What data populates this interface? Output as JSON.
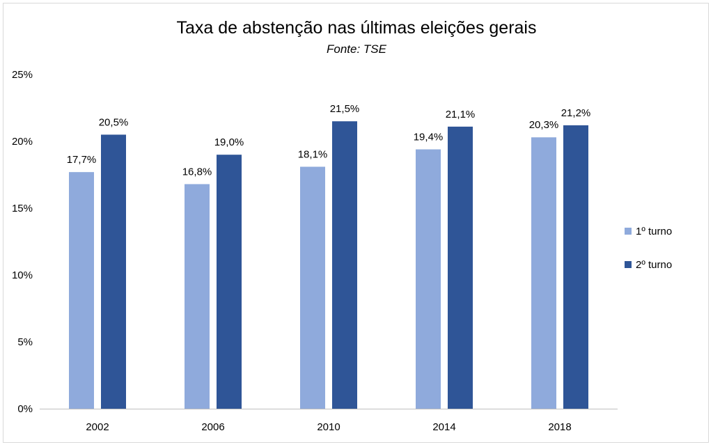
{
  "chart_data": {
    "type": "bar",
    "title": "Taxa de abstenção nas últimas eleições gerais",
    "subtitle": "Fonte: TSE",
    "categories": [
      "2002",
      "2006",
      "2010",
      "2014",
      "2018"
    ],
    "series": [
      {
        "name": "1º turno",
        "color": "#8faadc",
        "values": [
          17.7,
          16.8,
          18.1,
          19.4,
          20.3
        ],
        "labels": [
          "17,7%",
          "16,8%",
          "18,1%",
          "19,4%",
          "20,3%"
        ]
      },
      {
        "name": "2º turno",
        "color": "#2f5597",
        "values": [
          20.5,
          19.0,
          21.5,
          21.1,
          21.2
        ],
        "labels": [
          "20,5%",
          "19,0%",
          "21,5%",
          "21,1%",
          "21,2%"
        ]
      }
    ],
    "ylim": [
      0,
      25
    ],
    "yticks": [
      "0%",
      "5%",
      "10%",
      "15%",
      "20%",
      "25%"
    ],
    "ytick_values": [
      0,
      5,
      10,
      15,
      20,
      25
    ],
    "legend": "right",
    "grid": false
  }
}
